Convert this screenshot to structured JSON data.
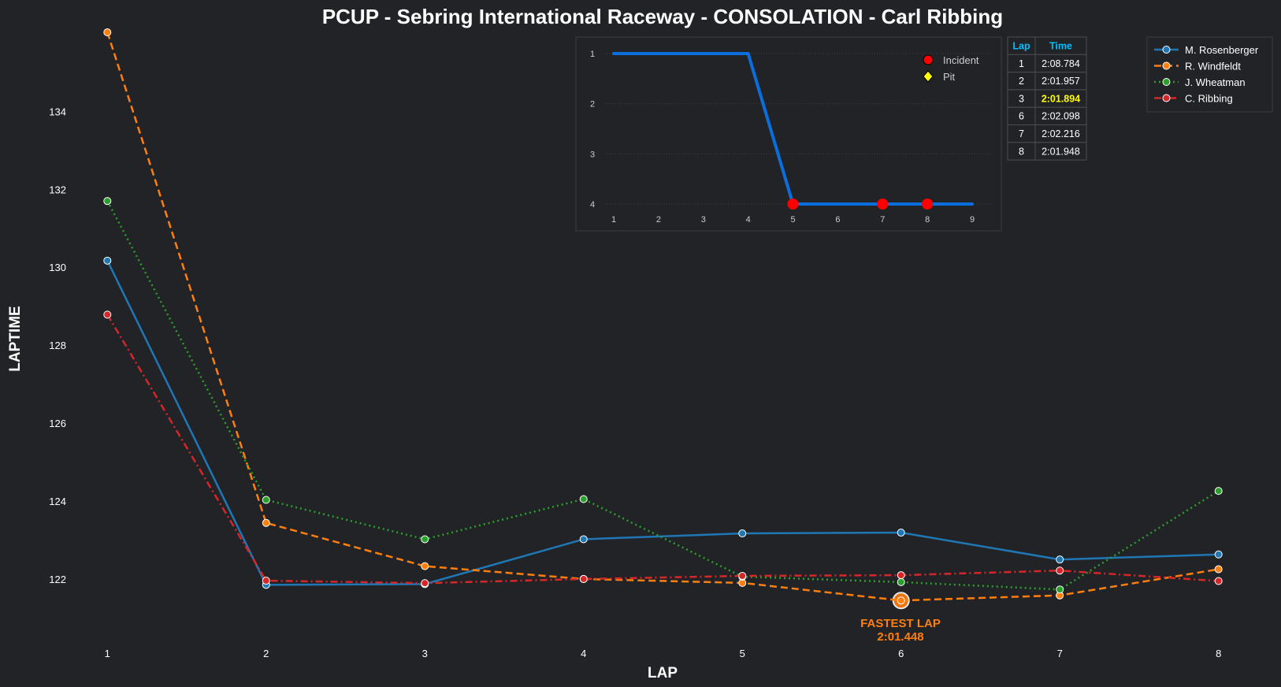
{
  "chart_data": {
    "type": "line",
    "title": "PCUP - Sebring International Raceway - CONSOLATION - Carl Ribbing",
    "xlabel": "LAP",
    "ylabel": "LAPTIME",
    "x": [
      1,
      2,
      3,
      4,
      5,
      6,
      7,
      8
    ],
    "xticks": [
      "1",
      "2",
      "3",
      "4",
      "5",
      "6",
      "7",
      "8"
    ],
    "yticks": [
      122,
      124,
      126,
      128,
      130,
      132,
      134
    ],
    "xlim": [
      0.8,
      8.2
    ],
    "ylim": [
      120.3,
      136.05
    ],
    "grid": false,
    "legend_position": "top-right",
    "series": [
      {
        "name": "M. Rosenberger",
        "color": "#1f77b4",
        "dash": "solid",
        "values": [
          130.17,
          121.85,
          121.87,
          123.02,
          123.17,
          123.19,
          122.5,
          122.63
        ]
      },
      {
        "name": "R. Windfeldt",
        "color": "#ff7f0e",
        "dash": "dashed",
        "values": [
          136.03,
          123.44,
          122.33,
          122.0,
          121.9,
          121.448,
          121.58,
          122.25
        ]
      },
      {
        "name": "J. Wheatman",
        "color": "#2ca02c",
        "dash": "dotted",
        "values": [
          131.7,
          124.03,
          123.02,
          124.05,
          122.06,
          121.92,
          121.73,
          124.26
        ]
      },
      {
        "name": "C. Ribbing",
        "color": "#d62728",
        "dash": "dashdot",
        "values": [
          128.784,
          121.957,
          121.894,
          122.0,
          122.08,
          122.098,
          122.216,
          121.948
        ]
      }
    ],
    "annotation": {
      "label": "FASTEST LAP",
      "time": "2:01.448",
      "lap": 6,
      "value": 121.448,
      "color": "#ff7f0e"
    },
    "inset": {
      "type": "line",
      "x": [
        1,
        2,
        3,
        4,
        5,
        6,
        7,
        8,
        9
      ],
      "positions": [
        1,
        1,
        1,
        1,
        4,
        4,
        4,
        4,
        4
      ],
      "xticks": [
        "1",
        "2",
        "3",
        "4",
        "5",
        "6",
        "7",
        "8",
        "9"
      ],
      "yticks": [
        "1",
        "2",
        "3",
        "4"
      ],
      "incidents": [
        5,
        7,
        8
      ],
      "color": "#0a6fdc",
      "legend": [
        {
          "label": "Incident",
          "color": "#ff0000"
        },
        {
          "label": "Pit",
          "color": "#ffff00"
        }
      ]
    },
    "lap_table": {
      "headers": [
        "Lap",
        "Time"
      ],
      "rows": [
        [
          "1",
          "2:08.784"
        ],
        [
          "2",
          "2:01.957"
        ],
        [
          "3",
          "2:01.894"
        ],
        [
          "6",
          "2:02.098"
        ],
        [
          "7",
          "2:02.216"
        ],
        [
          "8",
          "2:01.948"
        ]
      ],
      "highlight_row": 2,
      "header_color": "#00bfff",
      "highlight_color": "#ffff00"
    }
  }
}
